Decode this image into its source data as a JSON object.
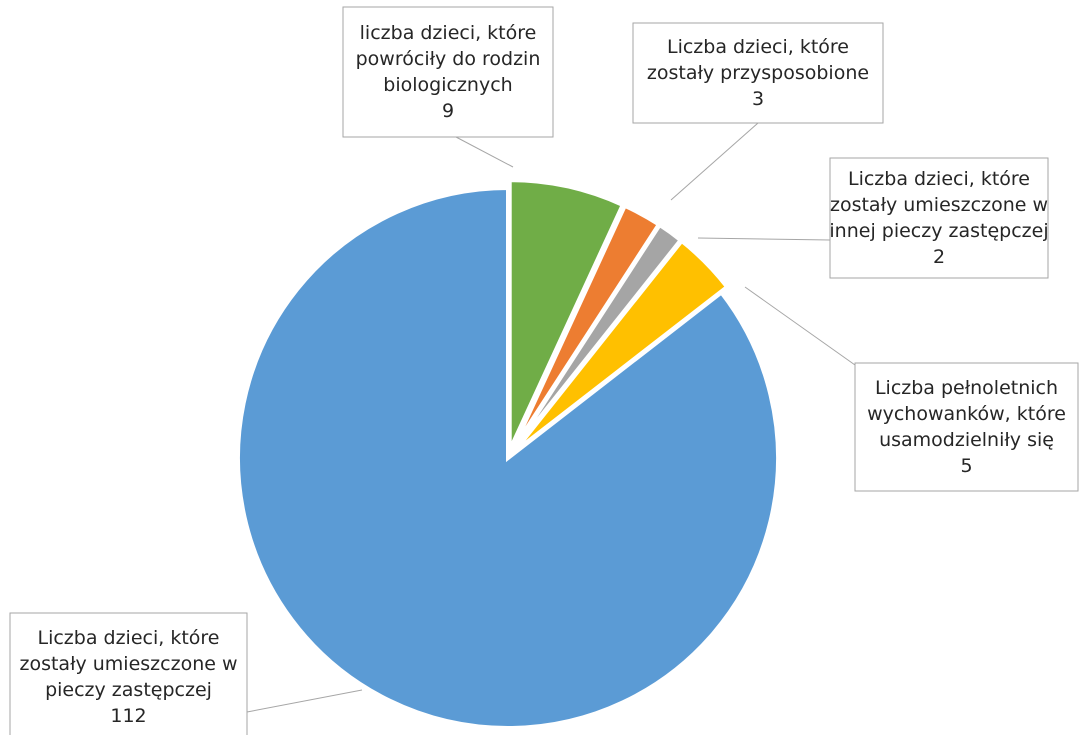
{
  "chart_data": {
    "type": "pie",
    "title": "",
    "start_angle_deg": 0,
    "direction": "clockwise",
    "exploded": true,
    "legend": "none",
    "slices": [
      {
        "label_lines": [
          "liczba dzieci, które",
          "powróciły do rodzin",
          "biologicznych"
        ],
        "value": 9,
        "value_label": "9",
        "color": "#70ad47"
      },
      {
        "label_lines": [
          "Liczba dzieci, które",
          "zostały przysposobione"
        ],
        "value": 3,
        "value_label": "3",
        "color": "#ed7d31"
      },
      {
        "label_lines": [
          "Liczba dzieci, które",
          "zostały umieszczone w",
          "innej pieczy zastępczej"
        ],
        "value": 2,
        "value_label": "2",
        "color": "#a5a5a5"
      },
      {
        "label_lines": [
          "Liczba pełnoletnich",
          "wychowanków, które",
          "usamodzielniły się"
        ],
        "value": 5,
        "value_label": "5",
        "color": "#ffc000"
      },
      {
        "label_lines": [
          "Liczba dzieci, które",
          "zostały umieszczone w",
          "pieczy zastępczej"
        ],
        "value": 112,
        "value_label": "112",
        "color": "#5b9bd5"
      }
    ]
  }
}
